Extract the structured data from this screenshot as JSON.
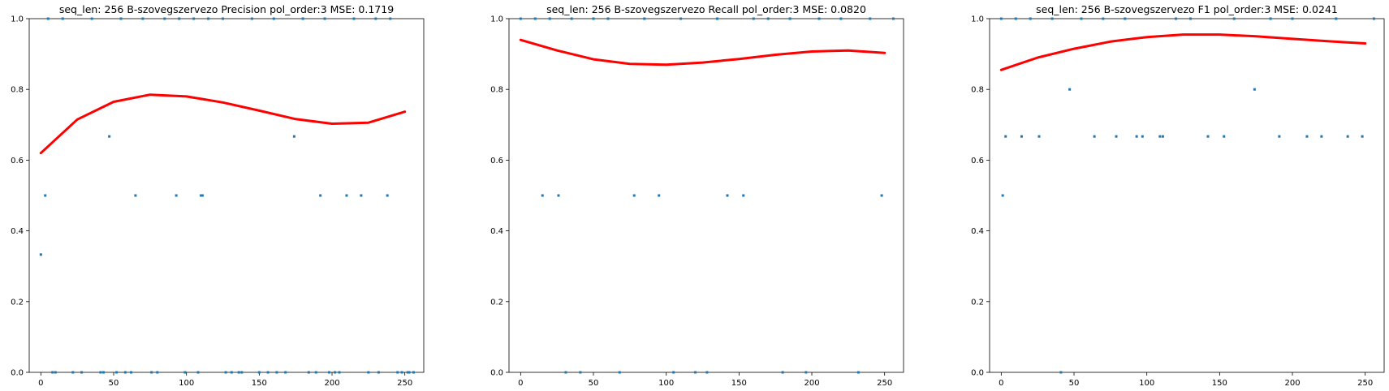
{
  "chart_data": [
    {
      "type": "scatter",
      "title": "seq_len: 256    B-szovegszervezo   Precision   pol_order:3   MSE: 0.1719",
      "xlabel": "",
      "ylabel": "",
      "xlim": [
        -8,
        263
      ],
      "ylim": [
        0,
        1
      ],
      "xticks": [
        "0",
        "50",
        "100",
        "150",
        "200",
        "250"
      ],
      "yticks": [
        "0.0",
        "0.2",
        "0.4",
        "0.6",
        "0.8",
        "1.0"
      ],
      "grid": false,
      "points": {
        "x": [
          0,
          3,
          8,
          10,
          22,
          28,
          41,
          43,
          47,
          52,
          58,
          62,
          65,
          76,
          80,
          93,
          99,
          108,
          110,
          111,
          127,
          131,
          136,
          138,
          150,
          156,
          162,
          168,
          174,
          184,
          189,
          192,
          198,
          202,
          205,
          210,
          220,
          225,
          232,
          238,
          245,
          248,
          252,
          253,
          256,
          5,
          15,
          35,
          55,
          70,
          85,
          95,
          105,
          115,
          125,
          145,
          160,
          180,
          195,
          215,
          230,
          240
        ],
        "y": [
          0.333,
          0.5,
          0,
          0,
          0,
          0,
          0,
          0,
          0.667,
          0,
          0,
          0,
          0.5,
          0,
          0,
          0.5,
          0,
          0,
          0.5,
          0.5,
          0,
          0,
          0,
          0,
          0,
          0,
          0,
          0,
          0.667,
          0,
          0,
          0.5,
          0,
          0,
          0,
          0.5,
          0.5,
          0,
          0,
          0.5,
          0,
          0,
          0,
          0,
          0,
          1,
          1,
          1,
          1,
          1,
          1,
          1,
          1,
          1,
          1,
          1,
          1,
          1,
          1,
          1,
          1,
          1
        ]
      },
      "fit": {
        "name": "",
        "x": [
          0,
          25,
          50,
          75,
          100,
          125,
          150,
          175,
          200,
          225,
          250
        ],
        "y": [
          0.62,
          0.715,
          0.765,
          0.785,
          0.78,
          0.763,
          0.74,
          0.716,
          0.703,
          0.706,
          0.737
        ]
      }
    },
    {
      "type": "scatter",
      "title": "seq_len: 256    B-szovegszervezo   Recall   pol_order:3   MSE: 0.0820",
      "xlabel": "",
      "ylabel": "",
      "xlim": [
        -8,
        263
      ],
      "ylim": [
        0,
        1
      ],
      "xticks": [
        "0",
        "50",
        "100",
        "150",
        "200",
        "250"
      ],
      "yticks": [
        "0.0",
        "0.2",
        "0.4",
        "0.6",
        "0.8",
        "1.0"
      ],
      "grid": false,
      "points": {
        "x": [
          15,
          26,
          31,
          41,
          68,
          78,
          95,
          105,
          120,
          128,
          142,
          153,
          180,
          196,
          232,
          248,
          0,
          10,
          20,
          35,
          50,
          60,
          85,
          110,
          135,
          160,
          170,
          185,
          205,
          220,
          240,
          256
        ],
        "y": [
          0.5,
          0.5,
          0,
          0,
          0,
          0.5,
          0.5,
          0,
          0,
          0,
          0.5,
          0.5,
          0,
          0,
          0,
          0.5,
          1,
          1,
          1,
          1,
          1,
          1,
          1,
          1,
          1,
          1,
          1,
          1,
          1,
          1,
          1,
          1
        ]
      },
      "fit": {
        "name": "",
        "x": [
          0,
          25,
          50,
          75,
          100,
          125,
          150,
          175,
          200,
          225,
          250
        ],
        "y": [
          0.94,
          0.91,
          0.885,
          0.872,
          0.87,
          0.876,
          0.886,
          0.898,
          0.907,
          0.91,
          0.903
        ]
      }
    },
    {
      "type": "scatter",
      "title": "seq_len: 256    B-szovegszervezo   F1   pol_order:3   MSE: 0.0241",
      "xlabel": "",
      "ylabel": "",
      "xlim": [
        -8,
        263
      ],
      "ylim": [
        0,
        1
      ],
      "xticks": [
        "0",
        "50",
        "100",
        "150",
        "200",
        "250"
      ],
      "yticks": [
        "0.0",
        "0.2",
        "0.4",
        "0.6",
        "0.8",
        "1.0"
      ],
      "grid": false,
      "points": {
        "x": [
          1,
          3,
          14,
          26,
          41,
          47,
          64,
          79,
          93,
          97,
          109,
          111,
          142,
          153,
          174,
          191,
          210,
          220,
          238,
          248,
          0,
          10,
          20,
          35,
          55,
          70,
          85,
          120,
          130,
          160,
          185,
          200,
          230,
          256
        ],
        "y": [
          0.5,
          0.667,
          0.667,
          0.667,
          0,
          0.8,
          0.667,
          0.667,
          0.667,
          0.667,
          0.667,
          0.667,
          0.667,
          0.667,
          0.8,
          0.667,
          0.667,
          0.667,
          0.667,
          0.667,
          1,
          1,
          1,
          1,
          1,
          1,
          1,
          1,
          1,
          1,
          1,
          1,
          1,
          1
        ]
      },
      "fit": {
        "name": "",
        "x": [
          0,
          25,
          50,
          75,
          100,
          125,
          150,
          175,
          200,
          225,
          250
        ],
        "y": [
          0.855,
          0.89,
          0.915,
          0.935,
          0.948,
          0.955,
          0.955,
          0.95,
          0.943,
          0.936,
          0.93
        ]
      }
    }
  ]
}
